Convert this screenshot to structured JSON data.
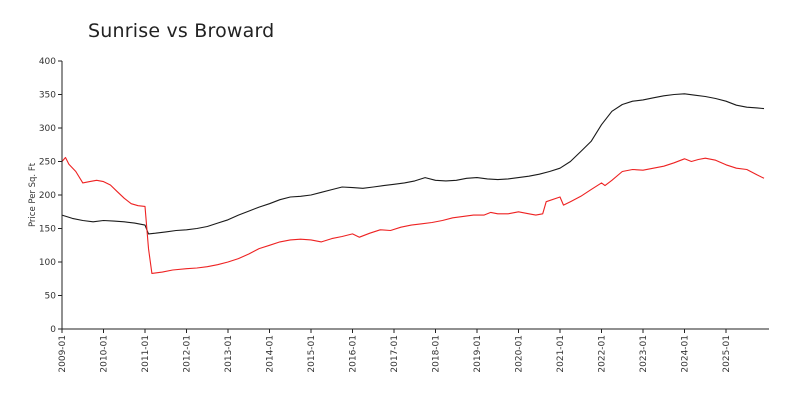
{
  "chart_data": {
    "type": "line",
    "title": "Sunrise vs Broward",
    "xlabel": "",
    "ylabel": "Price Per Sq. Ft",
    "ylim": [
      0,
      400
    ],
    "yticks": [
      0,
      50,
      100,
      150,
      200,
      250,
      300,
      350,
      400
    ],
    "xticks": [
      "2009-01",
      "2010-01",
      "2011-01",
      "2012-01",
      "2013-01",
      "2014-01",
      "2015-01",
      "2016-01",
      "2017-01",
      "2018-01",
      "2019-01",
      "2020-01",
      "2021-01",
      "2022-01",
      "2023-01",
      "2024-01",
      "2025-01"
    ],
    "x_range": [
      "2009-01",
      "2025-12"
    ],
    "grid": false,
    "legend": "none",
    "series": [
      {
        "color": "#1a1a1a",
        "points": [
          [
            "2009-01",
            170
          ],
          [
            "2009-04",
            165
          ],
          [
            "2009-07",
            162
          ],
          [
            "2009-10",
            160
          ],
          [
            "2010-01",
            162
          ],
          [
            "2010-04",
            161
          ],
          [
            "2010-07",
            160
          ],
          [
            "2010-10",
            158
          ],
          [
            "2011-01",
            155
          ],
          [
            "2011-02",
            142
          ],
          [
            "2011-04",
            143
          ],
          [
            "2011-07",
            145
          ],
          [
            "2011-10",
            147
          ],
          [
            "2012-01",
            148
          ],
          [
            "2012-04",
            150
          ],
          [
            "2012-07",
            153
          ],
          [
            "2012-10",
            158
          ],
          [
            "2013-01",
            163
          ],
          [
            "2013-04",
            170
          ],
          [
            "2013-07",
            176
          ],
          [
            "2013-10",
            182
          ],
          [
            "2014-01",
            187
          ],
          [
            "2014-04",
            193
          ],
          [
            "2014-07",
            197
          ],
          [
            "2014-10",
            198
          ],
          [
            "2015-01",
            200
          ],
          [
            "2015-04",
            204
          ],
          [
            "2015-07",
            208
          ],
          [
            "2015-10",
            212
          ],
          [
            "2016-01",
            211
          ],
          [
            "2016-04",
            210
          ],
          [
            "2016-07",
            212
          ],
          [
            "2016-10",
            214
          ],
          [
            "2017-01",
            216
          ],
          [
            "2017-04",
            218
          ],
          [
            "2017-07",
            221
          ],
          [
            "2017-10",
            226
          ],
          [
            "2018-01",
            222
          ],
          [
            "2018-04",
            221
          ],
          [
            "2018-07",
            222
          ],
          [
            "2018-10",
            225
          ],
          [
            "2019-01",
            226
          ],
          [
            "2019-04",
            224
          ],
          [
            "2019-07",
            223
          ],
          [
            "2019-10",
            224
          ],
          [
            "2020-01",
            226
          ],
          [
            "2020-04",
            228
          ],
          [
            "2020-07",
            231
          ],
          [
            "2020-10",
            235
          ],
          [
            "2021-01",
            240
          ],
          [
            "2021-04",
            250
          ],
          [
            "2021-07",
            265
          ],
          [
            "2021-10",
            280
          ],
          [
            "2022-01",
            305
          ],
          [
            "2022-04",
            325
          ],
          [
            "2022-07",
            335
          ],
          [
            "2022-10",
            340
          ],
          [
            "2023-01",
            342
          ],
          [
            "2023-04",
            345
          ],
          [
            "2023-07",
            348
          ],
          [
            "2023-10",
            350
          ],
          [
            "2024-01",
            351
          ],
          [
            "2024-04",
            349
          ],
          [
            "2024-07",
            347
          ],
          [
            "2024-10",
            344
          ],
          [
            "2025-01",
            340
          ],
          [
            "2025-04",
            334
          ],
          [
            "2025-07",
            331
          ],
          [
            "2025-10",
            330
          ],
          [
            "2025-12",
            329
          ]
        ]
      },
      {
        "color": "#ee2222",
        "points": [
          [
            "2009-01",
            250
          ],
          [
            "2009-02",
            256
          ],
          [
            "2009-03",
            246
          ],
          [
            "2009-05",
            235
          ],
          [
            "2009-07",
            218
          ],
          [
            "2009-09",
            220
          ],
          [
            "2009-11",
            222
          ],
          [
            "2010-01",
            220
          ],
          [
            "2010-03",
            215
          ],
          [
            "2010-05",
            205
          ],
          [
            "2010-07",
            195
          ],
          [
            "2010-09",
            187
          ],
          [
            "2010-11",
            184
          ],
          [
            "2011-01",
            183
          ],
          [
            "2011-02",
            120
          ],
          [
            "2011-03",
            83
          ],
          [
            "2011-06",
            85
          ],
          [
            "2011-09",
            88
          ],
          [
            "2012-01",
            90
          ],
          [
            "2012-04",
            91
          ],
          [
            "2012-07",
            93
          ],
          [
            "2012-10",
            96
          ],
          [
            "2013-01",
            100
          ],
          [
            "2013-04",
            105
          ],
          [
            "2013-07",
            112
          ],
          [
            "2013-10",
            120
          ],
          [
            "2014-01",
            125
          ],
          [
            "2014-04",
            130
          ],
          [
            "2014-07",
            133
          ],
          [
            "2014-10",
            134
          ],
          [
            "2015-01",
            133
          ],
          [
            "2015-04",
            130
          ],
          [
            "2015-07",
            135
          ],
          [
            "2015-10",
            138
          ],
          [
            "2016-01",
            142
          ],
          [
            "2016-03",
            137
          ],
          [
            "2016-06",
            143
          ],
          [
            "2016-09",
            148
          ],
          [
            "2016-12",
            147
          ],
          [
            "2017-03",
            152
          ],
          [
            "2017-06",
            155
          ],
          [
            "2017-09",
            157
          ],
          [
            "2017-12",
            159
          ],
          [
            "2018-03",
            162
          ],
          [
            "2018-06",
            166
          ],
          [
            "2018-09",
            168
          ],
          [
            "2018-12",
            170
          ],
          [
            "2019-03",
            170
          ],
          [
            "2019-05",
            174
          ],
          [
            "2019-07",
            172
          ],
          [
            "2019-10",
            172
          ],
          [
            "2020-01",
            175
          ],
          [
            "2020-04",
            172
          ],
          [
            "2020-06",
            170
          ],
          [
            "2020-08",
            172
          ],
          [
            "2020-09",
            190
          ],
          [
            "2021-01",
            197
          ],
          [
            "2021-02",
            185
          ],
          [
            "2021-04",
            190
          ],
          [
            "2021-07",
            198
          ],
          [
            "2021-10",
            208
          ],
          [
            "2022-01",
            218
          ],
          [
            "2022-02",
            214
          ],
          [
            "2022-04",
            222
          ],
          [
            "2022-07",
            235
          ],
          [
            "2022-10",
            238
          ],
          [
            "2023-01",
            237
          ],
          [
            "2023-04",
            240
          ],
          [
            "2023-07",
            243
          ],
          [
            "2023-10",
            248
          ],
          [
            "2024-01",
            254
          ],
          [
            "2024-03",
            250
          ],
          [
            "2024-05",
            253
          ],
          [
            "2024-07",
            255
          ],
          [
            "2024-10",
            252
          ],
          [
            "2025-01",
            245
          ],
          [
            "2025-04",
            240
          ],
          [
            "2025-07",
            238
          ],
          [
            "2025-10",
            230
          ],
          [
            "2025-12",
            225
          ]
        ]
      }
    ]
  }
}
